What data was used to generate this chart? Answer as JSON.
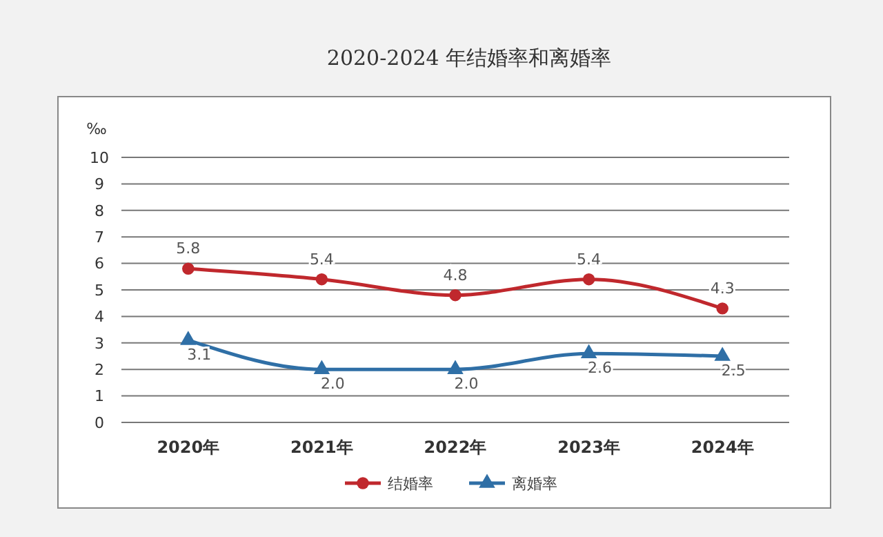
{
  "chart_data": {
    "type": "line",
    "title": "2020-2024 年结婚率和离婚率",
    "ylabel": "‰",
    "categories": [
      "2020年",
      "2021年",
      "2022年",
      "2023年",
      "2024年"
    ],
    "series": [
      {
        "name": "结婚率",
        "color": "#c0282d",
        "values": [
          5.8,
          5.4,
          4.8,
          5.4,
          4.3
        ],
        "value_labels": [
          "5.8",
          "5.4",
          "4.8",
          "5.4",
          "4.3"
        ],
        "marker": "circle"
      },
      {
        "name": "离婚率",
        "color": "#2f6fa6",
        "values": [
          3.1,
          2.0,
          2.0,
          2.6,
          2.5
        ],
        "value_labels": [
          "3.1",
          "2.0",
          "2.0",
          "2.6",
          "2.5"
        ],
        "marker": "triangle"
      }
    ],
    "ylim": [
      0,
      10
    ],
    "yticks": [
      0,
      1,
      2,
      3,
      4,
      5,
      6,
      7,
      8,
      9,
      10
    ],
    "grid": "y",
    "legend": "bottom"
  }
}
